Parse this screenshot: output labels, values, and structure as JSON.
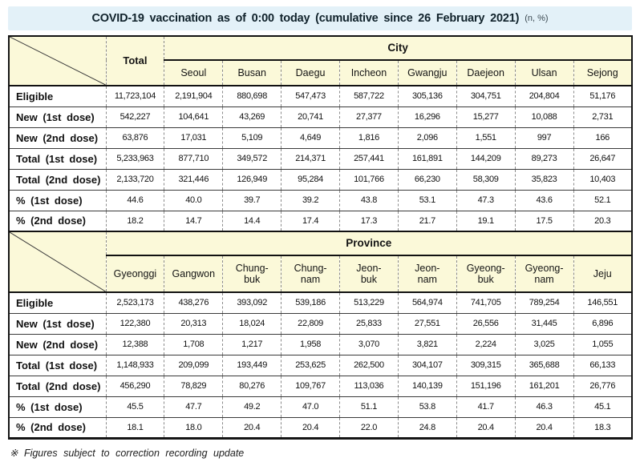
{
  "title": {
    "main": "COVID-19 vaccination as of 0:00 today (cumulative since 26 February 2021)",
    "suffix": "(n, %)"
  },
  "colors": {
    "title_bar_bg": "#e3f1f8",
    "header_cell_bg": "#fbf9d9",
    "table_border": "#151515"
  },
  "city_table": {
    "group_label": "City",
    "total_label": "Total",
    "columns": [
      "Seoul",
      "Busan",
      "Daegu",
      "Incheon",
      "Gwangju",
      "Daejeon",
      "Ulsan",
      "Sejong"
    ],
    "rows": [
      {
        "label": "Eligible",
        "values": [
          "11,723,104",
          "2,191,904",
          "880,698",
          "547,473",
          "587,722",
          "305,136",
          "304,751",
          "204,804",
          "51,176"
        ]
      },
      {
        "label": "New (1st dose)",
        "values": [
          "542,227",
          "104,641",
          "43,269",
          "20,741",
          "27,377",
          "16,296",
          "15,277",
          "10,088",
          "2,731"
        ]
      },
      {
        "label": "New (2nd dose)",
        "values": [
          "63,876",
          "17,031",
          "5,109",
          "4,649",
          "1,816",
          "2,096",
          "1,551",
          "997",
          "166"
        ]
      },
      {
        "label": "Total (1st dose)",
        "values": [
          "5,233,963",
          "877,710",
          "349,572",
          "214,371",
          "257,441",
          "161,891",
          "144,209",
          "89,273",
          "26,647"
        ]
      },
      {
        "label": "Total (2nd dose)",
        "values": [
          "2,133,720",
          "321,446",
          "126,949",
          "95,284",
          "101,766",
          "66,230",
          "58,309",
          "35,823",
          "10,403"
        ]
      },
      {
        "label": "% (1st dose)",
        "values": [
          "44.6",
          "40.0",
          "39.7",
          "39.2",
          "43.8",
          "53.1",
          "47.3",
          "43.6",
          "52.1"
        ]
      },
      {
        "label": "% (2nd dose)",
        "values": [
          "18.2",
          "14.7",
          "14.4",
          "17.4",
          "17.3",
          "21.7",
          "19.1",
          "17.5",
          "20.3"
        ]
      }
    ]
  },
  "province_table": {
    "group_label": "Province",
    "columns": [
      "Gyeonggi",
      "Gangwon",
      "Chung-buk",
      "Chung-nam",
      "Jeon-buk",
      "Jeon-nam",
      "Gyeong-buk",
      "Gyeong-nam",
      "Jeju"
    ],
    "rows": [
      {
        "label": "Eligible",
        "values": [
          "2,523,173",
          "438,276",
          "393,092",
          "539,186",
          "513,229",
          "564,974",
          "741,705",
          "789,254",
          "146,551"
        ]
      },
      {
        "label": "New (1st dose)",
        "values": [
          "122,380",
          "20,313",
          "18,024",
          "22,809",
          "25,833",
          "27,551",
          "26,556",
          "31,445",
          "6,896"
        ]
      },
      {
        "label": "New (2nd dose)",
        "values": [
          "12,388",
          "1,708",
          "1,217",
          "1,958",
          "3,070",
          "3,821",
          "2,224",
          "3,025",
          "1,055"
        ]
      },
      {
        "label": "Total (1st dose)",
        "values": [
          "1,148,933",
          "209,099",
          "193,449",
          "253,625",
          "262,500",
          "304,107",
          "309,315",
          "365,688",
          "66,133"
        ]
      },
      {
        "label": "Total (2nd dose)",
        "values": [
          "456,290",
          "78,829",
          "80,276",
          "109,767",
          "113,036",
          "140,139",
          "151,196",
          "161,201",
          "26,776"
        ]
      },
      {
        "label": "% (1st dose)",
        "values": [
          "45.5",
          "47.7",
          "49.2",
          "47.0",
          "51.1",
          "53.8",
          "41.7",
          "46.3",
          "45.1"
        ]
      },
      {
        "label": "% (2nd dose)",
        "values": [
          "18.1",
          "18.0",
          "20.4",
          "20.4",
          "22.0",
          "24.8",
          "20.4",
          "20.4",
          "18.3"
        ]
      }
    ]
  },
  "footnote": "※ Figures subject to correction recording update"
}
